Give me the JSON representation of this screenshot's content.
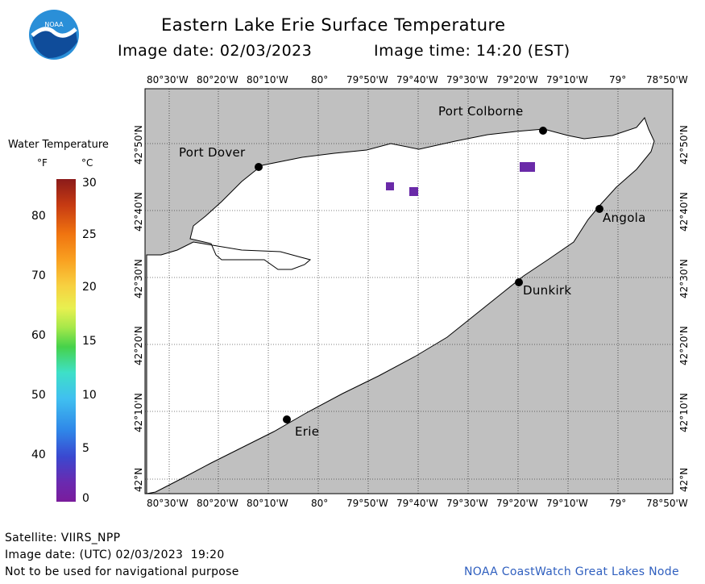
{
  "header": {
    "title": "Eastern Lake Erie Surface Temperature",
    "image_date_label": "Image date: 02/03/2023",
    "image_time_label": "Image time: 14:20 (EST)"
  },
  "logo": {
    "text": "NOAA"
  },
  "legend": {
    "title": "Water Temperature",
    "unit_f": "°F",
    "unit_c": "°C",
    "f_ticks": [
      "80",
      "70",
      "60",
      "50",
      "40"
    ],
    "c_ticks": [
      "30",
      "25",
      "20",
      "15",
      "10",
      "5",
      "0"
    ]
  },
  "map": {
    "lon_labels": [
      "80°30'W",
      "80°20'W",
      "80°10'W",
      "80°",
      "79°50'W",
      "79°40'W",
      "79°30'W",
      "79°20'W",
      "79°10'W",
      "79°",
      "78°50'W"
    ],
    "lat_labels": [
      "42°50'N",
      "42°40'N",
      "42°30'N",
      "42°20'N",
      "42°10'N",
      "42°N"
    ],
    "places": [
      {
        "name": "Port Colborne"
      },
      {
        "name": "Port Dover"
      },
      {
        "name": "Angola"
      },
      {
        "name": "Dunkirk"
      },
      {
        "name": "Erie"
      }
    ],
    "land_color": "#c0c0c0",
    "water_color": "#ffffff"
  },
  "footer": {
    "satellite": "Satellite: VIIRS_NPP",
    "utc_date": "Image date: (UTC) 02/03/2023  19:20",
    "disclaimer": "Not to be used for navigational purpose",
    "credit": "NOAA CoastWatch Great Lakes Node"
  }
}
